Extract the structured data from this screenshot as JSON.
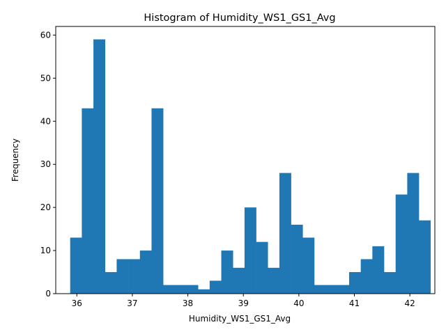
{
  "chart_data": {
    "type": "bar",
    "title": "Histogram of Humidity_WS1_GS1_Avg",
    "xlabel": "Humidity_WS1_GS1_Avg",
    "ylabel": "Frequency",
    "xlim": [
      35.62,
      42.45
    ],
    "ylim": [
      0,
      62
    ],
    "grid": false,
    "bar_color": "#1f77b4",
    "bin_start": 35.88,
    "bin_width": 0.2094,
    "values": [
      13,
      43,
      59,
      5,
      8,
      8,
      10,
      43,
      2,
      2,
      2,
      1,
      3,
      10,
      6,
      20,
      12,
      6,
      28,
      16,
      13,
      2,
      2,
      2,
      5,
      8,
      11,
      5,
      23,
      28,
      17
    ],
    "x_ticks": [
      {
        "value": 36,
        "label": "36"
      },
      {
        "value": 37,
        "label": "37"
      },
      {
        "value": 38,
        "label": "38"
      },
      {
        "value": 39,
        "label": "39"
      },
      {
        "value": 40,
        "label": "40"
      },
      {
        "value": 41,
        "label": "41"
      },
      {
        "value": 42,
        "label": "42"
      }
    ],
    "y_ticks": [
      {
        "value": 0,
        "label": "0"
      },
      {
        "value": 10,
        "label": "10"
      },
      {
        "value": 20,
        "label": "20"
      },
      {
        "value": 30,
        "label": "30"
      },
      {
        "value": 40,
        "label": "40"
      },
      {
        "value": 50,
        "label": "50"
      },
      {
        "value": 60,
        "label": "60"
      }
    ]
  }
}
